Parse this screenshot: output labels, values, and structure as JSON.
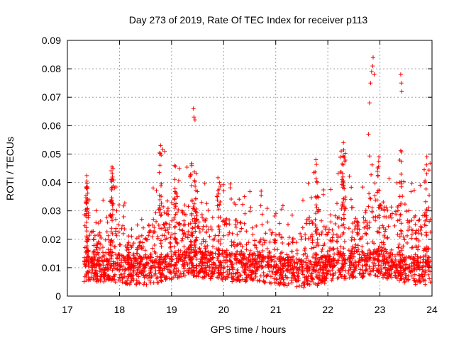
{
  "chart_data": {
    "type": "scatter",
    "title": "Day 273 of 2019, Rate Of TEC Index for receiver p113",
    "xlabel": "GPS time / hours",
    "ylabel": "ROTI / TECUs",
    "xlim": [
      17,
      24
    ],
    "ylim": [
      0,
      0.09
    ],
    "x_ticks": [
      "17",
      "18",
      "19",
      "20",
      "21",
      "22",
      "23",
      "24"
    ],
    "y_ticks": [
      "0",
      "0.01",
      "0.02",
      "0.03",
      "0.04",
      "0.05",
      "0.06",
      "0.07",
      "0.08",
      "0.09"
    ],
    "grid": true,
    "marker": "+",
    "series": [
      {
        "name": "ROTI",
        "color": "#ff0000",
        "description": "dense scatter of ROTI samples from ~17.3 to 24.0 h",
        "envelope": [
          {
            "x": 17.35,
            "base": 0.01,
            "upper": 0.044
          },
          {
            "x": 17.6,
            "base": 0.01,
            "upper": 0.03
          },
          {
            "x": 17.85,
            "base": 0.01,
            "upper": 0.047
          },
          {
            "x": 18.2,
            "base": 0.009,
            "upper": 0.028
          },
          {
            "x": 18.5,
            "base": 0.009,
            "upper": 0.033
          },
          {
            "x": 18.8,
            "base": 0.009,
            "upper": 0.053
          },
          {
            "x": 19.05,
            "base": 0.011,
            "upper": 0.048
          },
          {
            "x": 19.4,
            "base": 0.012,
            "upper": 0.047
          },
          {
            "x": 19.7,
            "base": 0.011,
            "upper": 0.038
          },
          {
            "x": 19.95,
            "base": 0.01,
            "upper": 0.045
          },
          {
            "x": 20.3,
            "base": 0.01,
            "upper": 0.038
          },
          {
            "x": 20.6,
            "base": 0.01,
            "upper": 0.04
          },
          {
            "x": 21.0,
            "base": 0.009,
            "upper": 0.033
          },
          {
            "x": 21.4,
            "base": 0.008,
            "upper": 0.03
          },
          {
            "x": 21.8,
            "base": 0.008,
            "upper": 0.048
          },
          {
            "x": 22.0,
            "base": 0.01,
            "upper": 0.035
          },
          {
            "x": 22.3,
            "base": 0.011,
            "upper": 0.053
          },
          {
            "x": 22.6,
            "base": 0.011,
            "upper": 0.035
          },
          {
            "x": 22.8,
            "base": 0.012,
            "upper": 0.052
          },
          {
            "x": 23.1,
            "base": 0.011,
            "upper": 0.045
          },
          {
            "x": 23.4,
            "base": 0.01,
            "upper": 0.052
          },
          {
            "x": 23.7,
            "base": 0.009,
            "upper": 0.035
          },
          {
            "x": 23.9,
            "base": 0.009,
            "upper": 0.049
          }
        ],
        "outliers": [
          {
            "x": 19.42,
            "y": 0.066
          },
          {
            "x": 19.43,
            "y": 0.063
          },
          {
            "x": 19.45,
            "y": 0.062
          },
          {
            "x": 22.78,
            "y": 0.057
          },
          {
            "x": 22.8,
            "y": 0.068
          },
          {
            "x": 22.82,
            "y": 0.075
          },
          {
            "x": 22.84,
            "y": 0.079
          },
          {
            "x": 22.86,
            "y": 0.081
          },
          {
            "x": 22.87,
            "y": 0.084
          },
          {
            "x": 22.89,
            "y": 0.078
          },
          {
            "x": 23.4,
            "y": 0.078
          },
          {
            "x": 23.41,
            "y": 0.075
          },
          {
            "x": 23.42,
            "y": 0.072
          },
          {
            "x": 18.79,
            "y": 0.053
          },
          {
            "x": 22.3,
            "y": 0.054
          },
          {
            "x": 21.77,
            "y": 0.048
          },
          {
            "x": 23.9,
            "y": 0.049
          },
          {
            "x": 22.98,
            "y": 0.049
          }
        ]
      }
    ]
  }
}
